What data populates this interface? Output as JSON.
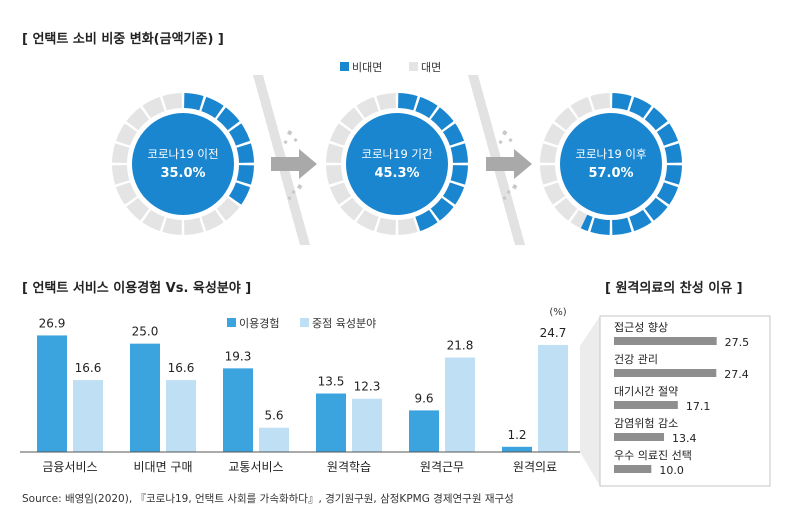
{
  "colors": {
    "online": "#1a86d0",
    "offline": "#e4e4e4",
    "exp": "#3ba3dd",
    "intent": "#bfe0f4",
    "reason_bar": "#8e8e8e",
    "arrow": "#a9a9a9"
  },
  "titles": {
    "donut": "[ 언택트 소비 비중 변화(금액기준) ]",
    "usage": "[ 언택트 서비스 이용경험 Vs. 육성분야 ]",
    "reason": "[ 원격의료의 찬성 이유 ]"
  },
  "source": "Source: 배영임(2020), 『코로나19, 언택트 사회를 가속화하다』, 경기원구원, 삼정KPMG 경제연구원 재구성",
  "chart_data": [
    {
      "type": "pie",
      "title": "[ 언택트 소비 비중 변화(금액기준) ]",
      "legend": [
        "비대면",
        "대면"
      ],
      "legend_placement": "top",
      "donuts": [
        {
          "label": "코로나19 이전",
          "value_text": "35.0%",
          "online": 35.0,
          "offline": 65.0
        },
        {
          "label": "코로나19 기간",
          "value_text": "45.3%",
          "online": 45.3,
          "offline": 54.7
        },
        {
          "label": "코로나19 이후",
          "value_text": "57.0%",
          "online": 57.0,
          "offline": 43.0
        }
      ]
    },
    {
      "type": "bar",
      "title": "[ 언택트 서비스 이용경험 Vs. 육성분야 ]",
      "unit": "(%)",
      "categories": [
        "금융서비스",
        "비대면 구매",
        "교통서비스",
        "원격학습",
        "원격근무",
        "원격의료"
      ],
      "series": [
        {
          "name": "이용경험",
          "values": [
            26.9,
            25.0,
            19.3,
            13.5,
            9.6,
            1.2
          ]
        },
        {
          "name": "중점 육성분야",
          "values": [
            16.6,
            16.6,
            5.6,
            12.3,
            21.8,
            24.7
          ]
        }
      ],
      "ylim": [
        0,
        30
      ],
      "grid": false,
      "legend_placement": "top"
    },
    {
      "type": "bar",
      "orientation": "horizontal",
      "title": "[ 원격의료의 찬성 이유 ]",
      "categories": [
        "접근성 향상",
        "건강 관리",
        "대기시간 절약",
        "감염위험 감소",
        "우수 의료진 선택"
      ],
      "values": [
        27.5,
        27.4,
        17.1,
        13.4,
        10.0
      ],
      "value_labels": [
        "27.5",
        "27.4",
        "17.1",
        "13.4",
        "10.0"
      ],
      "xlim": [
        0,
        30
      ]
    }
  ]
}
